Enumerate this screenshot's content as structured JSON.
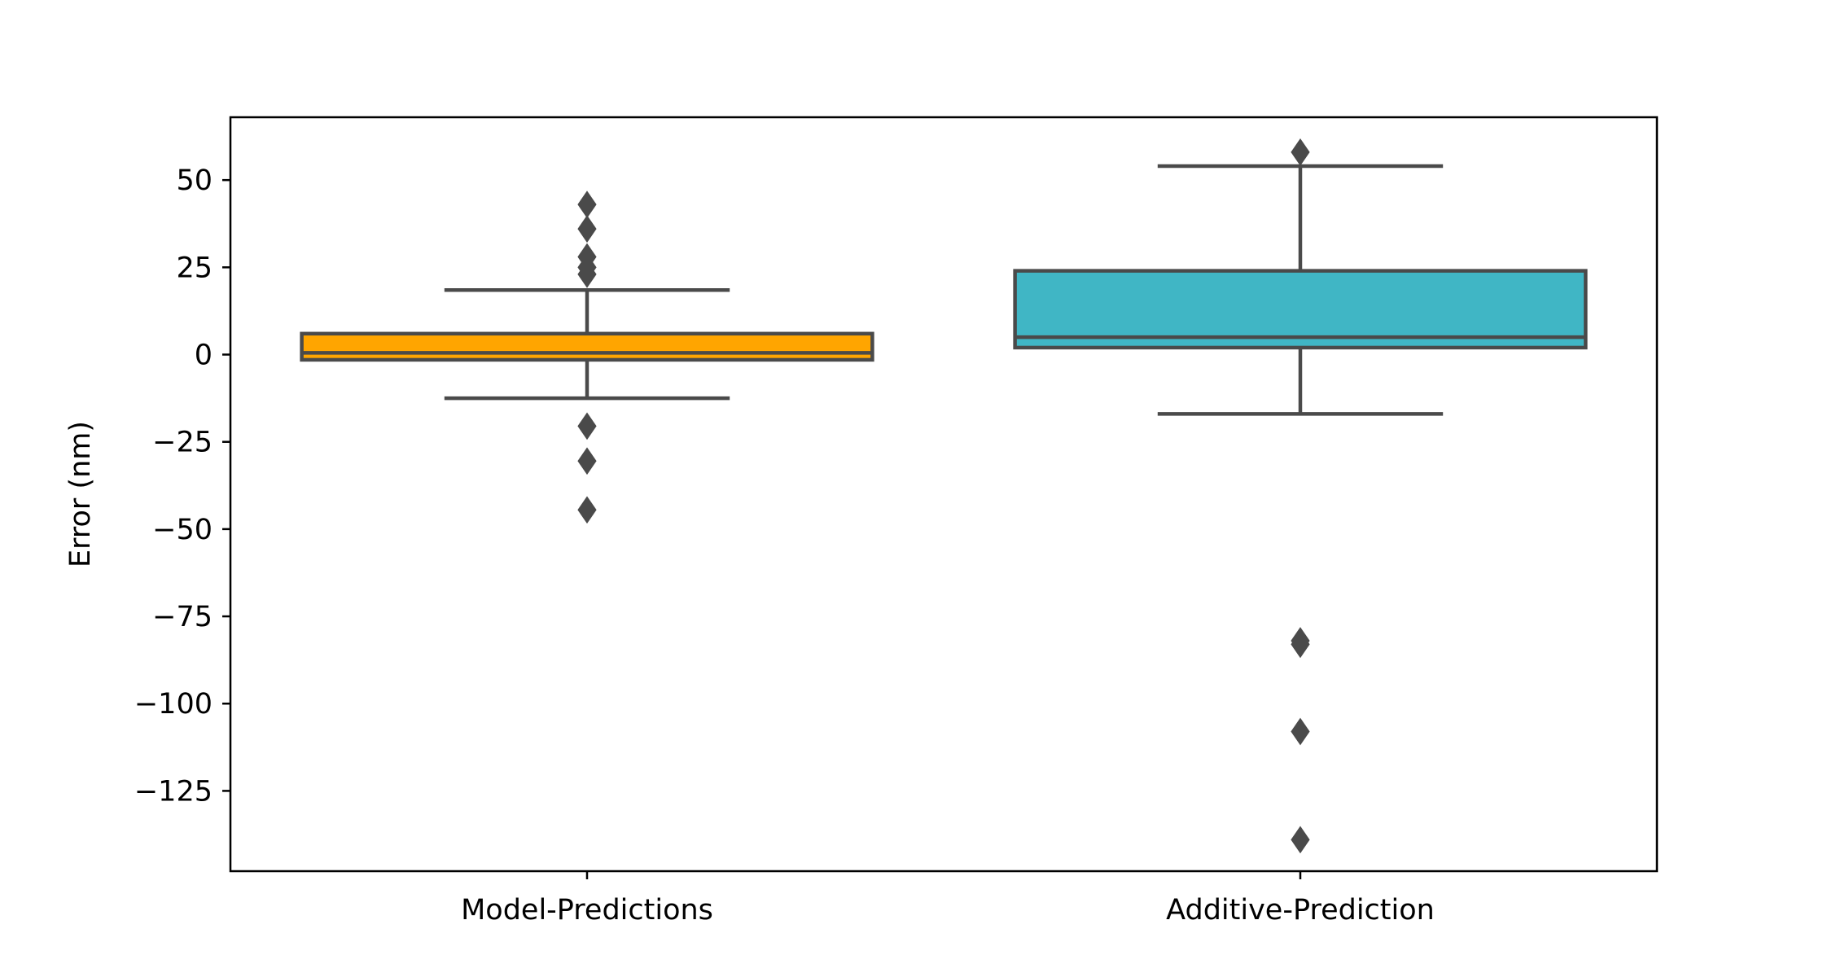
{
  "chart_data": {
    "type": "box",
    "title": "",
    "xlabel": "",
    "ylabel": "Error (nm)",
    "ylim": [
      -148,
      68
    ],
    "yticks": [
      50,
      25,
      0,
      -25,
      -50,
      -75,
      -100,
      -125
    ],
    "ytick_labels": [
      "50",
      "25",
      "0",
      "−25",
      "−50",
      "−75",
      "−100",
      "−125"
    ],
    "grid": false,
    "categories": [
      "Model-Predictions",
      "Additive-Prediction"
    ],
    "boxes": [
      {
        "category": "Model-Predictions",
        "color": "#ffa500",
        "q1": -1.5,
        "median": 0.5,
        "q3": 6.0,
        "whisker_low": -12.5,
        "whisker_high": 18.5,
        "outliers": [
          43,
          36,
          28,
          25,
          23,
          -20.5,
          -30.5,
          -44.5
        ]
      },
      {
        "category": "Additive-Prediction",
        "color": "#40b6c5",
        "q1": 2.0,
        "median": 5.0,
        "q3": 24.0,
        "whisker_low": -17.0,
        "whisker_high": 54.0,
        "outliers": [
          58,
          -82,
          -83,
          -108,
          -139
        ]
      }
    ],
    "line_color": "#4a4a4a"
  }
}
